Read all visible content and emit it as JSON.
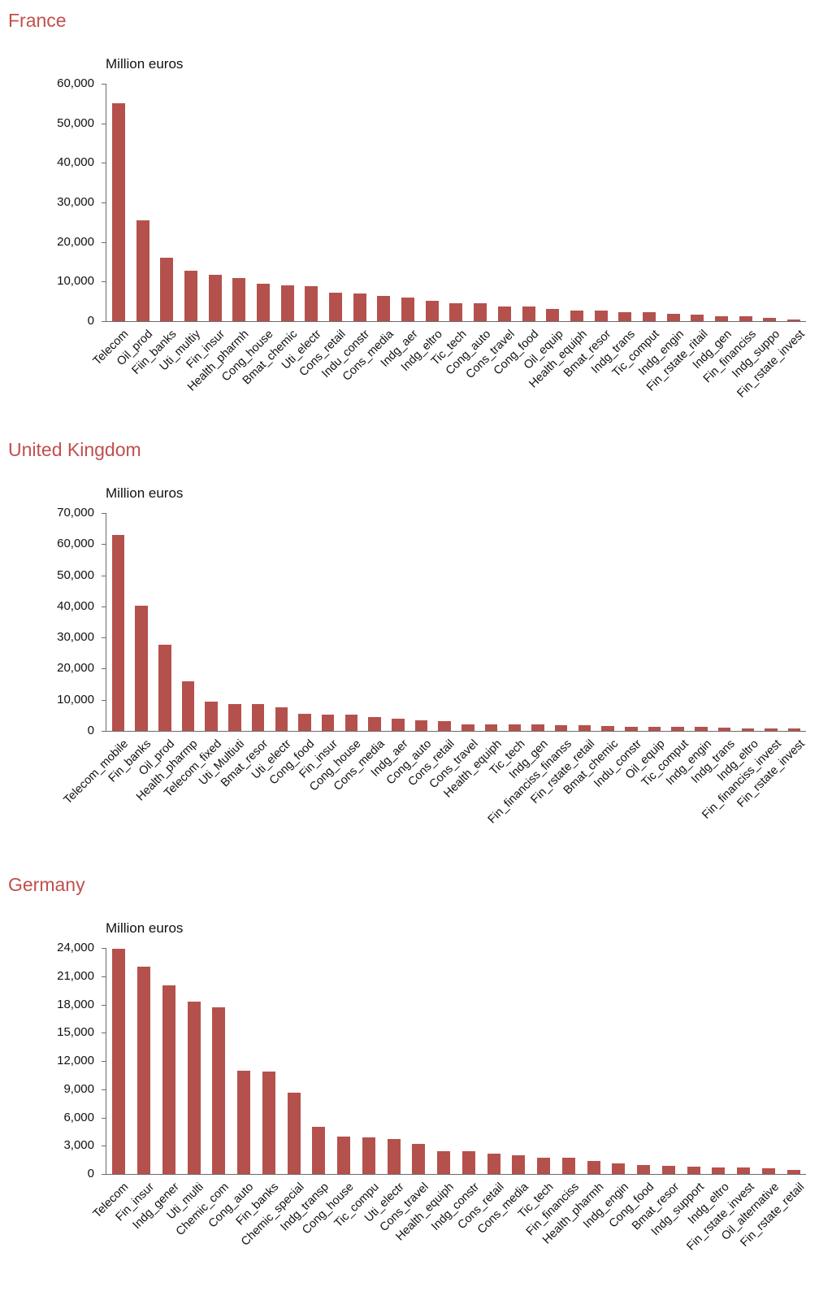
{
  "colors": {
    "bar": "#b5514d",
    "title": "#c0504d",
    "axis": "#6b6b6b"
  },
  "chart_data": [
    {
      "type": "bar",
      "title": "France",
      "ylabel": "Million euros",
      "ylim": [
        0,
        60000
      ],
      "ytick_step": 10000,
      "grid": false,
      "legend": false,
      "categories": [
        "Telecom",
        "Oil_prod",
        "Fiin_banks",
        "Uti_multiy",
        "Fin_insur",
        "Health_pharmh",
        "Cong_house",
        "Bmat_chemic",
        "Uti_electr",
        "Cons_retail",
        "Indu_constr",
        "Cons_media",
        "Indg_aer",
        "Indg_eltro",
        "Tic_tech",
        "Cong_auto",
        "Cons_travel",
        "Cong_food",
        "Oil_equip",
        "Health_equiph",
        "Bmat_resor",
        "Indg_trans",
        "Tic_comput",
        "Indg_engin",
        "Fin_rstate_ritail",
        "Indg_gen",
        "Fin_financiss",
        "Indg_suppo",
        "Fin_rstate_invest"
      ],
      "values": [
        55000,
        25500,
        16000,
        12700,
        11700,
        10900,
        9400,
        9100,
        8900,
        7200,
        7000,
        6400,
        5900,
        5100,
        4500,
        4500,
        3700,
        3700,
        3100,
        2700,
        2600,
        2300,
        2200,
        1900,
        1600,
        1300,
        1200,
        800,
        400
      ]
    },
    {
      "type": "bar",
      "title": "United Kingdom",
      "ylabel": "Million euros",
      "ylim": [
        0,
        70000
      ],
      "ytick_step": 10000,
      "grid": false,
      "legend": false,
      "categories": [
        "Telecom_mobile",
        "Fin_banks",
        "Oil_prod",
        "Health_pharmp",
        "Telecom_fixed",
        "Uti_Multiuti",
        "Bmat_resor",
        "Uti_electr",
        "Cong_food",
        "Fin_insur",
        "Cong_house",
        "Cons_media",
        "Indg_aer",
        "Cong_auto",
        "Cons_retail",
        "Cons_travel",
        "Health_equiph",
        "Tic_tech",
        "Indg_gen",
        "Fin_financiss_finanss",
        "Fin_rstate_retail",
        "Bmat_chemic",
        "Indu_constr",
        "Oil_equip",
        "Tic_comput",
        "Indg_engin",
        "Indg_trans",
        "Indg_eltro",
        "Fin_financiss_invest",
        "Fin_rstate_invest"
      ],
      "values": [
        63000,
        40300,
        27800,
        15900,
        9400,
        8600,
        8500,
        7500,
        5500,
        5200,
        5100,
        4400,
        3900,
        3500,
        3100,
        2100,
        2100,
        2000,
        2000,
        1800,
        1800,
        1700,
        1400,
        1300,
        1300,
        1200,
        1000,
        900,
        800,
        700
      ]
    },
    {
      "type": "bar",
      "title": "Germany",
      "ylabel": "Million euros",
      "ylim": [
        0,
        24000
      ],
      "ytick_step": 3000,
      "grid": false,
      "legend": false,
      "categories": [
        "Telecom",
        "Fin_insur",
        "Indg_gener",
        "Uti_multi",
        "Chemic_com",
        "Cong_auto",
        "Fin_banks",
        "Chemic_special",
        "Indg_transp",
        "Cong_house",
        "Tic_compu",
        "Uti_electr",
        "Cons_travel",
        "Health_equiph",
        "Indg_constr",
        "Cons_retail",
        "Cons_media",
        "Tic_tech",
        "Fin_financiss",
        "Health_pharmh",
        "Indg_engin",
        "Cong_food",
        "Bmat_resor",
        "Indg_support",
        "Indg_eltro",
        "Fin_rstate_invest",
        "Oil_alternative",
        "Fin_rstate_retail"
      ],
      "values": [
        23900,
        22000,
        20000,
        18300,
        17700,
        11000,
        10900,
        8600,
        5000,
        4000,
        3900,
        3700,
        3200,
        2400,
        2400,
        2200,
        2000,
        1700,
        1700,
        1400,
        1100,
        950,
        900,
        800,
        700,
        700,
        600,
        400
      ]
    }
  ]
}
